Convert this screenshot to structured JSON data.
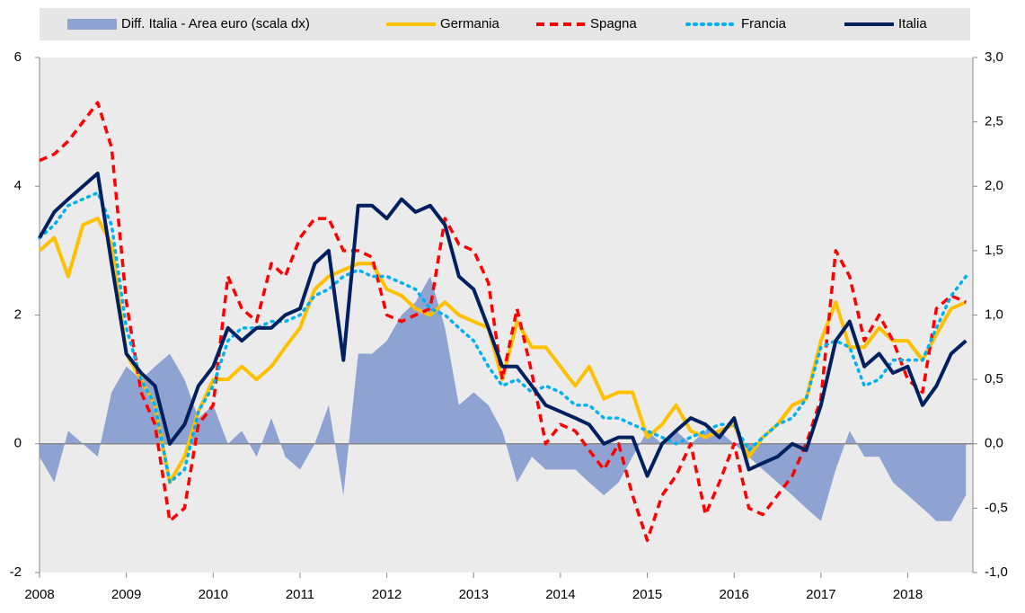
{
  "chart_data": {
    "type": "line",
    "x": [
      2008,
      2008.17,
      2008.33,
      2008.5,
      2008.67,
      2008.83,
      2009,
      2009.17,
      2009.33,
      2009.5,
      2009.67,
      2009.83,
      2010,
      2010.17,
      2010.33,
      2010.5,
      2010.67,
      2010.83,
      2011,
      2011.17,
      2011.33,
      2011.5,
      2011.67,
      2011.83,
      2012,
      2012.17,
      2012.33,
      2012.5,
      2012.67,
      2012.83,
      2013,
      2013.17,
      2013.33,
      2013.5,
      2013.67,
      2013.83,
      2014,
      2014.17,
      2014.33,
      2014.5,
      2014.67,
      2014.83,
      2015,
      2015.17,
      2015.33,
      2015.5,
      2015.67,
      2015.83,
      2016,
      2016.17,
      2016.33,
      2016.5,
      2016.67,
      2016.83,
      2017,
      2017.17,
      2017.33,
      2017.5,
      2017.67,
      2017.83,
      2018,
      2018.17,
      2018.33,
      2018.5,
      2018.67
    ],
    "series": [
      {
        "name": "Diff. Italia - Area euro (scala dx)",
        "type": "area",
        "axis": "y2",
        "color": "#8fa3d3",
        "values": [
          -0.1,
          -0.3,
          0.1,
          0.0,
          -0.1,
          0.4,
          0.6,
          0.5,
          0.6,
          0.7,
          0.5,
          0.2,
          0.3,
          0.0,
          0.1,
          -0.1,
          0.2,
          -0.1,
          -0.2,
          0.0,
          0.3,
          -0.4,
          0.7,
          0.7,
          0.8,
          1.0,
          1.1,
          1.3,
          0.9,
          0.3,
          0.4,
          0.3,
          0.1,
          -0.3,
          -0.1,
          -0.2,
          -0.2,
          -0.2,
          -0.3,
          -0.4,
          -0.3,
          -0.1,
          0.1,
          0.0,
          0.1,
          0.0,
          0.1,
          0.1,
          0.0,
          -0.1,
          -0.2,
          -0.3,
          -0.4,
          -0.5,
          -0.6,
          -0.2,
          0.1,
          -0.1,
          -0.1,
          -0.3,
          -0.4,
          -0.5,
          -0.6,
          -0.6,
          -0.4
        ]
      },
      {
        "name": "Germania",
        "type": "line",
        "style": "solid",
        "color": "#ffc000",
        "values": [
          3.0,
          3.2,
          2.6,
          3.4,
          3.5,
          3.1,
          1.4,
          1.0,
          0.6,
          -0.6,
          -0.2,
          0.5,
          1.0,
          1.0,
          1.2,
          1.0,
          1.2,
          1.5,
          1.8,
          2.4,
          2.6,
          2.7,
          2.8,
          2.8,
          2.4,
          2.3,
          2.1,
          2.0,
          2.2,
          2.0,
          1.9,
          1.8,
          1.0,
          1.9,
          1.5,
          1.5,
          1.2,
          0.9,
          1.2,
          0.7,
          0.8,
          0.8,
          0.1,
          0.3,
          0.6,
          0.2,
          0.1,
          0.2,
          0.3,
          -0.2,
          0.1,
          0.3,
          0.6,
          0.7,
          1.6,
          2.2,
          1.5,
          1.5,
          1.8,
          1.6,
          1.6,
          1.3,
          1.7,
          2.1,
          2.2
        ]
      },
      {
        "name": "Spagna",
        "type": "line",
        "style": "dashed",
        "color": "#ff0000",
        "values": [
          4.4,
          4.5,
          4.7,
          5.0,
          5.3,
          4.6,
          2.2,
          0.8,
          0.3,
          -1.2,
          -1.0,
          0.3,
          0.6,
          2.6,
          2.1,
          1.9,
          2.8,
          2.6,
          3.2,
          3.5,
          3.5,
          3.0,
          3.0,
          2.9,
          2.0,
          1.9,
          2.0,
          2.1,
          3.5,
          3.1,
          3.0,
          2.5,
          1.0,
          2.1,
          1.1,
          0.0,
          0.3,
          0.2,
          -0.1,
          -0.4,
          0.0,
          -0.8,
          -1.5,
          -0.8,
          -0.5,
          0.0,
          -1.1,
          -0.6,
          0.0,
          -1.0,
          -1.1,
          -0.8,
          -0.5,
          0.0,
          0.7,
          3.0,
          2.6,
          1.6,
          2.0,
          1.6,
          1.0,
          0.8,
          2.1,
          2.3,
          2.2
        ]
      },
      {
        "name": "Francia",
        "type": "line",
        "style": "dotted",
        "color": "#00b0f0",
        "values": [
          3.2,
          3.4,
          3.7,
          3.8,
          3.9,
          3.4,
          1.8,
          1.0,
          0.6,
          -0.6,
          -0.4,
          0.5,
          0.9,
          1.6,
          1.8,
          1.8,
          1.9,
          1.9,
          2.0,
          2.3,
          2.4,
          2.6,
          2.7,
          2.6,
          2.6,
          2.5,
          2.4,
          2.1,
          2.0,
          1.8,
          1.6,
          1.2,
          0.9,
          1.0,
          0.8,
          0.9,
          0.8,
          0.6,
          0.6,
          0.4,
          0.4,
          0.3,
          0.2,
          0.1,
          0.0,
          0.1,
          0.2,
          0.3,
          0.3,
          -0.1,
          0.1,
          0.3,
          0.4,
          0.7,
          1.5,
          1.6,
          1.5,
          0.9,
          1.0,
          1.3,
          1.3,
          1.3,
          1.8,
          2.3,
          2.6
        ]
      },
      {
        "name": "Italia",
        "type": "line",
        "style": "solid",
        "color": "#002060",
        "values": [
          3.2,
          3.6,
          3.8,
          4.0,
          4.2,
          2.8,
          1.4,
          1.1,
          0.9,
          0.0,
          0.3,
          0.9,
          1.2,
          1.8,
          1.6,
          1.8,
          1.8,
          2.0,
          2.1,
          2.8,
          3.0,
          1.3,
          3.7,
          3.7,
          3.5,
          3.8,
          3.6,
          3.7,
          3.4,
          2.6,
          2.4,
          1.8,
          1.2,
          1.2,
          0.9,
          0.6,
          0.5,
          0.4,
          0.3,
          0.0,
          0.1,
          0.1,
          -0.5,
          0.0,
          0.2,
          0.4,
          0.3,
          0.1,
          0.4,
          -0.4,
          -0.3,
          -0.2,
          0.0,
          -0.1,
          0.6,
          1.6,
          1.9,
          1.2,
          1.4,
          1.1,
          1.2,
          0.6,
          0.9,
          1.4,
          1.6
        ]
      }
    ],
    "xlim": [
      2008,
      2018.75
    ],
    "xticks": [
      2008,
      2009,
      2010,
      2011,
      2012,
      2013,
      2014,
      2015,
      2016,
      2017,
      2018
    ],
    "ylim": [
      -2,
      6
    ],
    "yticks": [
      -2,
      0,
      2,
      4,
      6
    ],
    "y2lim": [
      -1,
      3
    ],
    "y2ticks": [
      {
        "value": -1,
        "label": "-1,0"
      },
      {
        "value": -0.5,
        "label": "-0,5"
      },
      {
        "value": 0,
        "label": "0,0"
      },
      {
        "value": 0.5,
        "label": "0,5"
      },
      {
        "value": 1,
        "label": "1,0"
      },
      {
        "value": 1.5,
        "label": "1,5"
      },
      {
        "value": 2,
        "label": "2,0"
      },
      {
        "value": 2.5,
        "label": "2,5"
      },
      {
        "value": 3,
        "label": "3,0"
      }
    ],
    "legend": "top"
  }
}
